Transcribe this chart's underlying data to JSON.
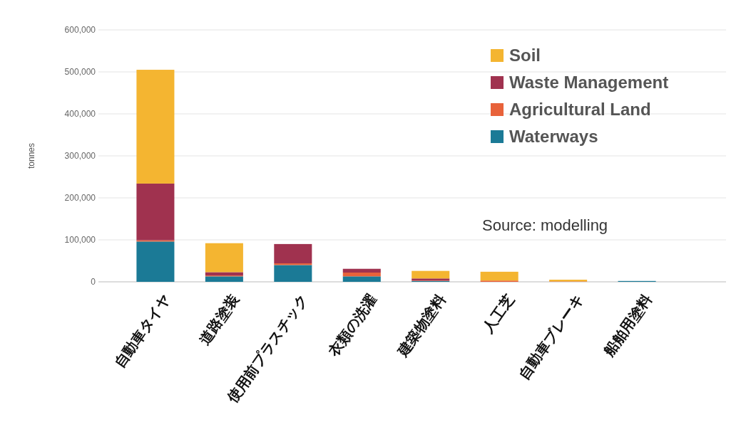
{
  "chart_data": {
    "type": "bar",
    "stacked": true,
    "ylabel": "tonnes",
    "categories": [
      "自動車タイヤ",
      "道路塗装",
      "使用前プラスチック",
      "衣類の洗濯",
      "建築物塗料",
      "人工芝",
      "自動車ブレーキ",
      "船舶用塗料"
    ],
    "series": [
      {
        "name": "Waterways",
        "color": "#1b7a96",
        "values": [
          96000,
          13000,
          40000,
          13000,
          2000,
          0,
          null,
          2000
        ]
      },
      {
        "name": "Agricultural Land",
        "color": "#e8623a",
        "values": [
          3000,
          2000,
          4000,
          9000,
          1000,
          3000,
          1000,
          0
        ]
      },
      {
        "name": "Waste Management",
        "color": "#a0324f",
        "values": [
          135000,
          8000,
          46000,
          9000,
          5000,
          0,
          0,
          0
        ]
      },
      {
        "name": "Soil",
        "color": "#f4b531",
        "values": [
          271000,
          69000,
          0,
          0,
          18000,
          21000,
          4000,
          0
        ]
      }
    ],
    "ylim": [
      0,
      600000
    ],
    "yticks": [
      {
        "value": 0,
        "label": "0"
      },
      {
        "value": 100000,
        "label": "100,000"
      },
      {
        "value": 200000,
        "label": "200,000"
      },
      {
        "value": 300000,
        "label": "300,000"
      },
      {
        "value": 400000,
        "label": "400,000"
      },
      {
        "value": 500000,
        "label": "500,000"
      },
      {
        "value": 600000,
        "label": "600,000"
      }
    ],
    "grid": "y",
    "legend": "top right",
    "annotations": [
      "Source: modelling"
    ]
  }
}
